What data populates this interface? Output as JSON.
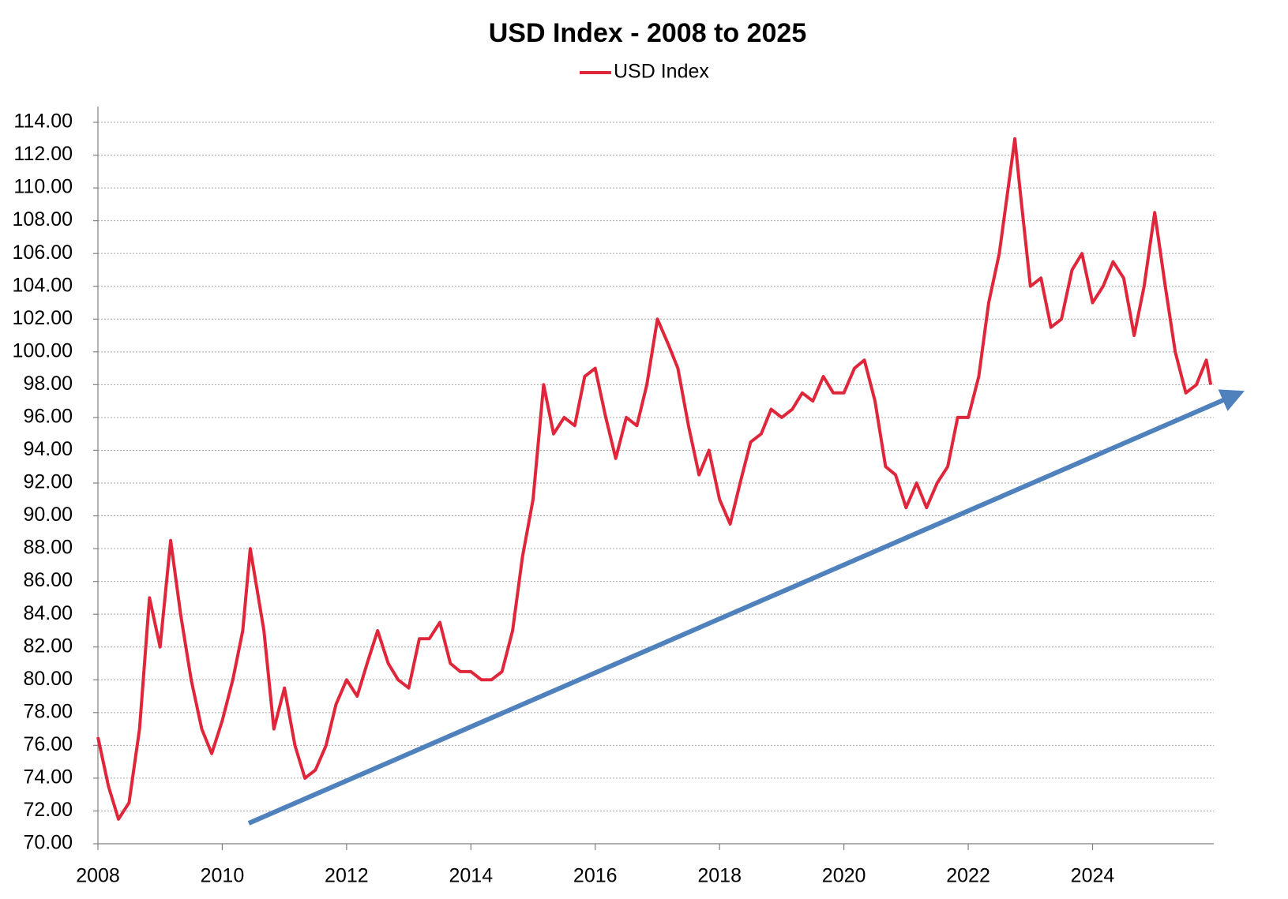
{
  "chart_data": {
    "type": "line",
    "title": "USD Index - 2008 to 2025",
    "x": [
      2008.0,
      2008.17,
      2008.33,
      2008.5,
      2008.67,
      2008.83,
      2009.0,
      2009.17,
      2009.33,
      2009.5,
      2009.67,
      2009.83,
      2010.0,
      2010.17,
      2010.33,
      2010.45,
      2010.67,
      2010.83,
      2011.0,
      2011.17,
      2011.33,
      2011.5,
      2011.67,
      2011.83,
      2012.0,
      2012.17,
      2012.33,
      2012.5,
      2012.67,
      2012.83,
      2013.0,
      2013.17,
      2013.33,
      2013.5,
      2013.67,
      2013.83,
      2014.0,
      2014.17,
      2014.33,
      2014.5,
      2014.67,
      2014.83,
      2015.0,
      2015.17,
      2015.33,
      2015.5,
      2015.67,
      2015.83,
      2016.0,
      2016.17,
      2016.33,
      2016.5,
      2016.67,
      2016.83,
      2017.0,
      2017.17,
      2017.33,
      2017.5,
      2017.67,
      2017.83,
      2018.0,
      2018.17,
      2018.33,
      2018.5,
      2018.67,
      2018.83,
      2019.0,
      2019.17,
      2019.33,
      2019.5,
      2019.67,
      2019.83,
      2020.0,
      2020.17,
      2020.33,
      2020.5,
      2020.67,
      2020.83,
      2021.0,
      2021.17,
      2021.33,
      2021.5,
      2021.67,
      2021.83,
      2022.0,
      2022.17,
      2022.33,
      2022.5,
      2022.75,
      2022.83,
      2023.0,
      2023.17,
      2023.33,
      2023.5,
      2023.67,
      2023.83,
      2024.0,
      2024.17,
      2024.33,
      2024.5,
      2024.67,
      2024.83,
      2025.0,
      2025.17,
      2025.33,
      2025.5,
      2025.67,
      2025.83,
      2025.9
    ],
    "series": [
      {
        "name": "USD Index",
        "color": "#e0263a",
        "values": [
          76.5,
          73.5,
          71.5,
          72.5,
          77,
          85,
          82,
          88.5,
          84,
          80,
          77,
          75.5,
          77.5,
          80,
          83,
          88,
          83,
          77,
          79.5,
          76,
          74,
          74.5,
          76,
          78.5,
          80,
          79,
          81,
          83,
          81,
          80,
          79.5,
          82.5,
          82.5,
          83.5,
          81,
          80.5,
          80.5,
          80,
          80,
          80.5,
          83,
          87.5,
          91,
          98,
          95,
          96,
          95.5,
          98.5,
          99,
          96,
          93.5,
          96,
          95.5,
          98,
          102,
          100.5,
          99,
          95.5,
          92.5,
          94,
          91,
          89.5,
          92,
          94.5,
          95,
          96.5,
          96,
          96.5,
          97.5,
          97,
          98.5,
          97.5,
          97.5,
          99,
          99.5,
          97,
          93,
          92.5,
          90.5,
          92,
          90.5,
          92,
          93,
          96,
          96,
          98.5,
          103,
          106,
          113,
          110,
          104,
          104.5,
          101.5,
          102,
          105,
          106,
          103,
          104,
          105.5,
          104.5,
          101,
          104,
          108.5,
          104,
          100,
          97.5,
          98,
          99.5,
          98
        ]
      }
    ],
    "xlim": [
      2008,
      2025.95
    ],
    "xticks": [
      2008,
      2010,
      2012,
      2014,
      2016,
      2018,
      2020,
      2022,
      2024
    ],
    "ylim": [
      70,
      114
    ],
    "yticks": [
      {
        "value": 70,
        "label": "70.00"
      },
      {
        "value": 72,
        "label": "72.00"
      },
      {
        "value": 74,
        "label": "74.00"
      },
      {
        "value": 76,
        "label": "76.00"
      },
      {
        "value": 78,
        "label": "78.00"
      },
      {
        "value": 80,
        "label": "80.00"
      },
      {
        "value": 82,
        "label": "82.00"
      },
      {
        "value": 84,
        "label": "84.00"
      },
      {
        "value": 86,
        "label": "86.00"
      },
      {
        "value": 88,
        "label": "88.00"
      },
      {
        "value": 90,
        "label": "90.00"
      },
      {
        "value": 92,
        "label": "92.00"
      },
      {
        "value": 94,
        "label": "94.00"
      },
      {
        "value": 96,
        "label": "96.00"
      },
      {
        "value": 98,
        "label": "98.00"
      },
      {
        "value": 100,
        "label": "100.00"
      },
      {
        "value": 102,
        "label": "102.00"
      },
      {
        "value": 104,
        "label": "104.00"
      },
      {
        "value": 106,
        "label": "106.00"
      },
      {
        "value": 108,
        "label": "108.00"
      },
      {
        "value": 110,
        "label": "110.00"
      },
      {
        "value": 112,
        "label": "112.00"
      },
      {
        "value": 114,
        "label": "114.00"
      }
    ],
    "grid": true
  }
}
